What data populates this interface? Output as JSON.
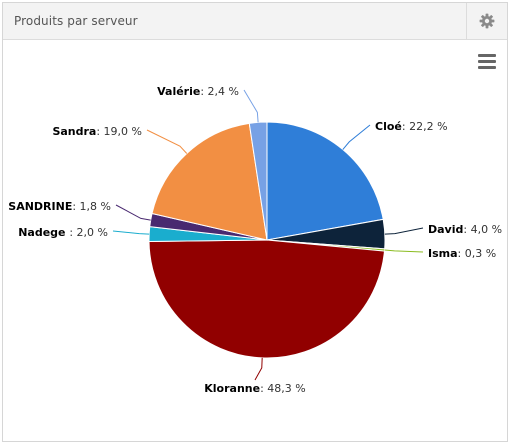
{
  "widget": {
    "title": "Produits par serveur",
    "settings_icon": "gear-icon",
    "menu_icon": "hamburger-menu-icon"
  },
  "chart_data": {
    "type": "pie",
    "start_angle_deg": 0,
    "slices": [
      {
        "name": "Cloé",
        "value": 22.2,
        "label": "22,2 %",
        "color": "#2f7ed8"
      },
      {
        "name": "David",
        "value": 4.0,
        "label": "4,0 %",
        "color": "#0d233a"
      },
      {
        "name": "Isma",
        "value": 0.3,
        "label": "0,3 %",
        "color": "#8bbc21"
      },
      {
        "name": "Kloranne",
        "value": 48.3,
        "label": "48,3 %",
        "color": "#910000"
      },
      {
        "name": "Nadege ",
        "value": 2.0,
        "label": "2,0 %",
        "color": "#1aadce"
      },
      {
        "name": "SANDRINE",
        "value": 1.8,
        "label": "1,8 %",
        "color": "#492970"
      },
      {
        "name": "Sandra",
        "value": 19.0,
        "label": "19,0 %",
        "color": "#f28f43"
      },
      {
        "name": "Valérie",
        "value": 2.4,
        "label": "2,4 %",
        "color": "#77a1e5"
      }
    ]
  }
}
